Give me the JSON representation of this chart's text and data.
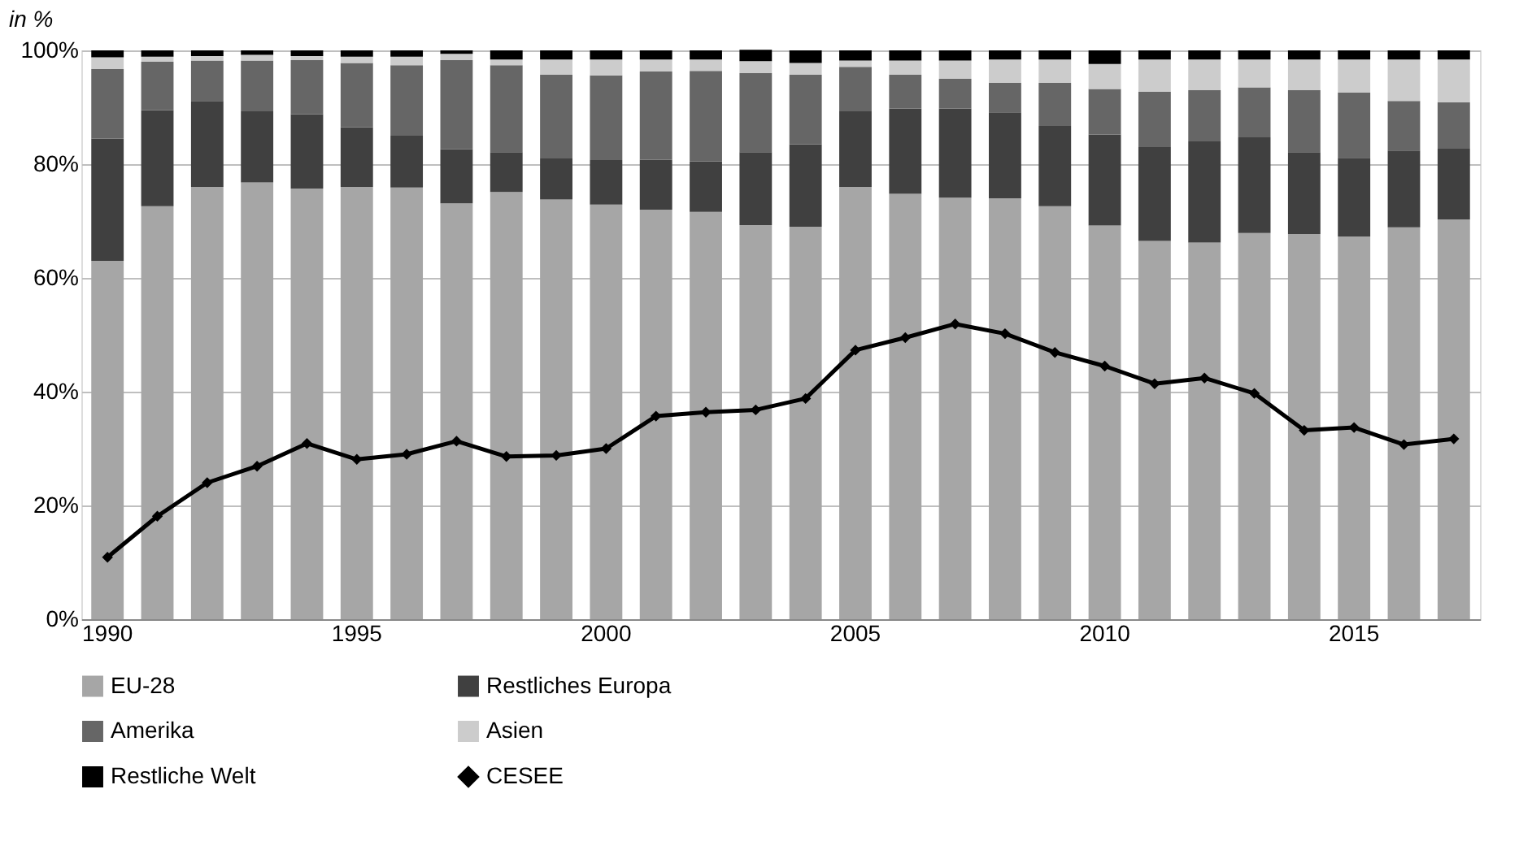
{
  "chart_data": {
    "type": "bar",
    "stacked": true,
    "ylabel": "in %",
    "categories": [
      "1990",
      null,
      null,
      null,
      null,
      "1995",
      null,
      null,
      null,
      null,
      "2000",
      null,
      null,
      null,
      null,
      "2005",
      null,
      null,
      null,
      null,
      "2010",
      null,
      null,
      null,
      null,
      "2015",
      null,
      null
    ],
    "ylim": [
      0,
      100
    ],
    "yticks": [
      {
        "value": 0,
        "label": "0%"
      },
      {
        "value": 20,
        "label": "20%"
      },
      {
        "value": 40,
        "label": "40%"
      },
      {
        "value": 60,
        "label": "60%"
      },
      {
        "value": 80,
        "label": "80%"
      },
      {
        "value": 100,
        "label": "100%"
      }
    ],
    "grid": "y",
    "legend": "bottom",
    "series": [
      {
        "name": "EU-28",
        "color": "#a6a6a6",
        "values": [
          63,
          72.6,
          76,
          76.8,
          75.7,
          76,
          75.9,
          73.1,
          75.1,
          73.8,
          72.9,
          72,
          71.6,
          69.3,
          69,
          76,
          74.8,
          74.1,
          74,
          72.6,
          69.2,
          66.5,
          66.2,
          67.9,
          67.7,
          67.3,
          68.9,
          70.3
        ]
      },
      {
        "name": "Restliches Europa",
        "color": "#404040",
        "values": [
          21.5,
          16.9,
          15.1,
          12.5,
          13.1,
          10.5,
          9.1,
          9.5,
          7,
          7.2,
          7.8,
          8.8,
          8.9,
          12.8,
          14.5,
          13.3,
          15,
          15.7,
          15.1,
          14.1,
          16,
          16.5,
          17.8,
          16.8,
          14.4,
          13.8,
          13.5,
          12.4
        ]
      },
      {
        "name": "Amerika",
        "color": "#666666",
        "values": [
          12.2,
          8.5,
          7.1,
          8.9,
          9.5,
          11.3,
          12.4,
          15.7,
          15.3,
          14.7,
          14.9,
          15.5,
          15.9,
          13.9,
          12.2,
          7.8,
          5.9,
          5.2,
          5.2,
          7.6,
          8,
          9.7,
          9,
          8.8,
          10.9,
          11.5,
          8.7,
          8.2
        ]
      },
      {
        "name": "Asien",
        "color": "#cccccc",
        "values": [
          2.1,
          0.9,
          0.8,
          1,
          0.7,
          1.1,
          1.5,
          1.1,
          1,
          2.7,
          2.8,
          2.1,
          2,
          2.1,
          2.1,
          1.1,
          2.5,
          3.2,
          4.1,
          4.1,
          4.4,
          5.7,
          5.4,
          4.9,
          5.4,
          5.8,
          7.3,
          7.5
        ]
      },
      {
        "name": "Restliche Welt",
        "color": "#000000",
        "values": [
          1.2,
          1.1,
          1,
          0.8,
          1,
          1.1,
          1.1,
          0.6,
          1.6,
          1.6,
          1.6,
          1.6,
          1.6,
          2,
          2.2,
          1.8,
          1.8,
          1.8,
          1.6,
          1.6,
          2.4,
          1.6,
          1.6,
          1.6,
          1.6,
          1.6,
          1.6,
          1.6
        ]
      },
      {
        "name": "CESEE",
        "type": "line",
        "color": "#000000",
        "marker": "diamond",
        "line_style": "solid",
        "values": [
          10.9,
          18.1,
          24,
          26.9,
          30.9,
          28.1,
          29,
          31.3,
          28.6,
          28.8,
          30,
          35.7,
          36.4,
          36.8,
          38.8,
          47.3,
          49.5,
          51.9,
          50.2,
          46.9,
          44.5,
          41.4,
          42.4,
          39.7,
          33.2,
          33.7,
          30.7,
          31.7
        ]
      }
    ]
  }
}
